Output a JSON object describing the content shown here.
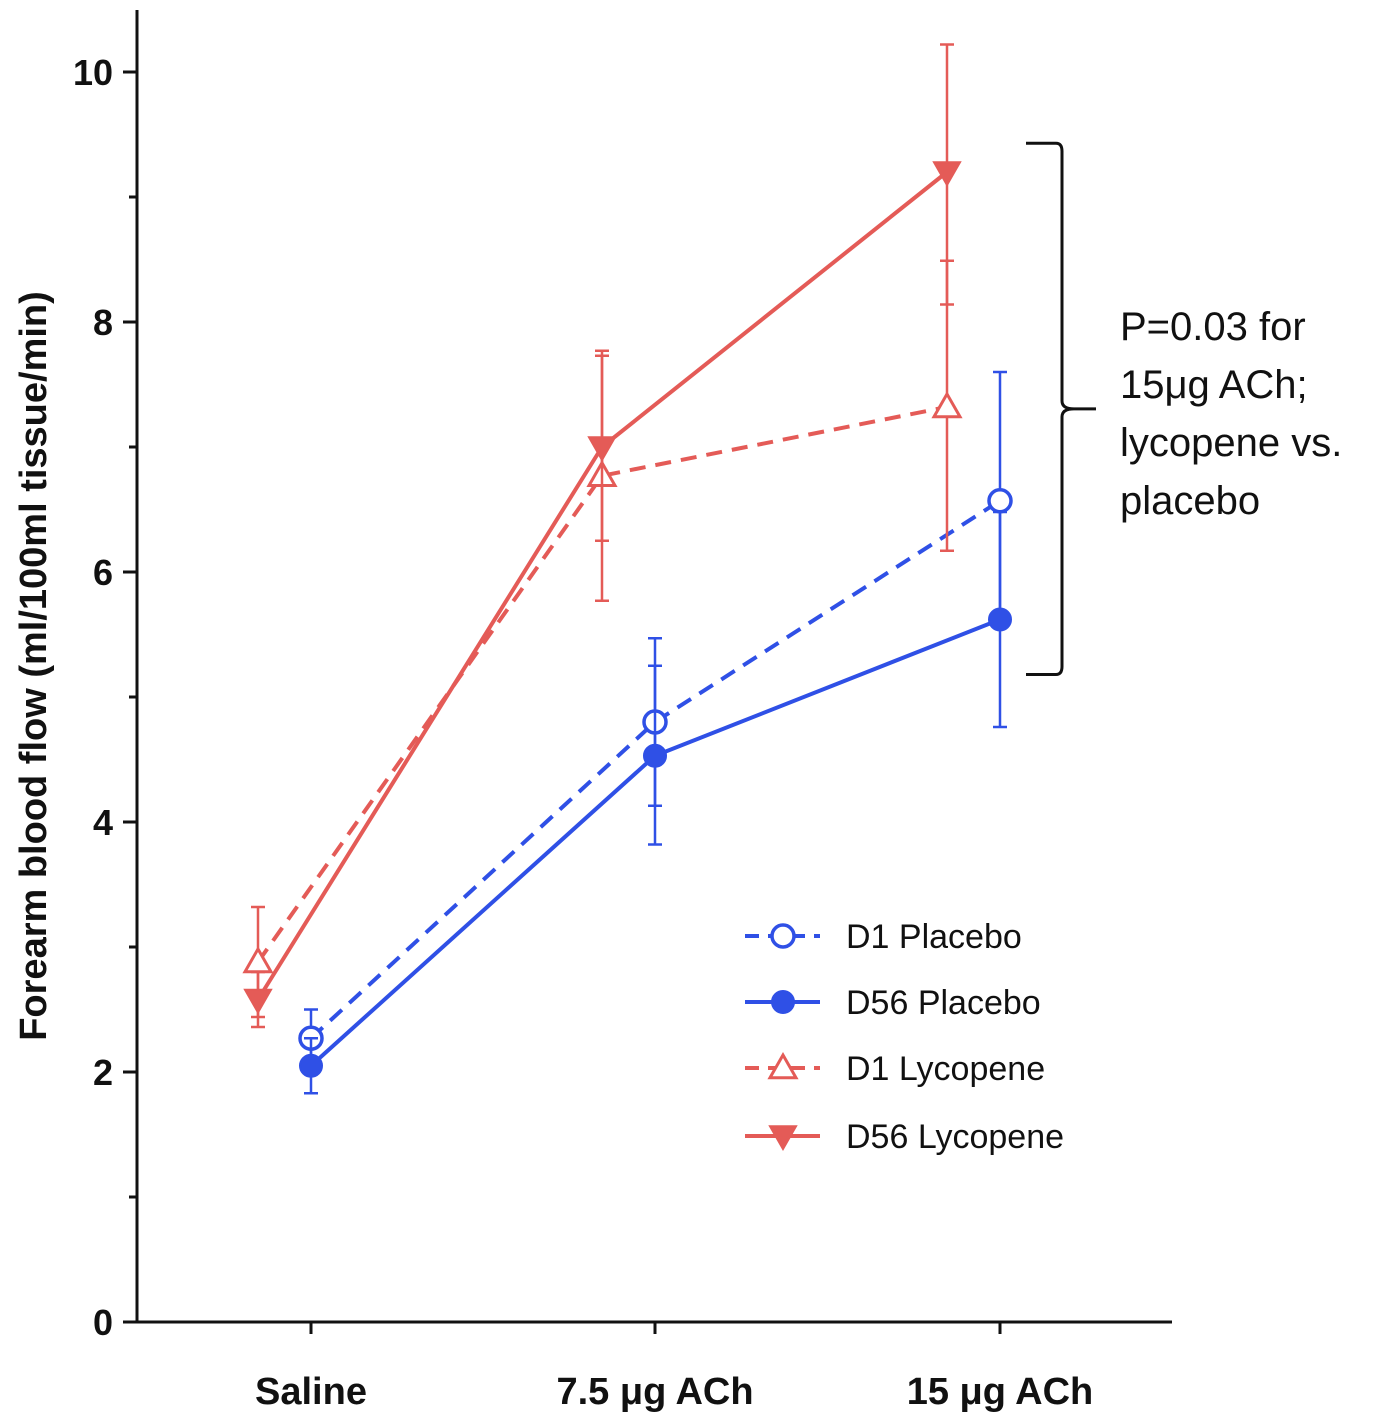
{
  "chart_data": {
    "type": "line",
    "ylabel": "Forearm  blood flow (ml/100ml tissue/min)",
    "xlabel": "",
    "ylim": [
      0,
      10.5
    ],
    "yticks_labeled": [
      "0",
      "2",
      "4",
      "6",
      "8",
      "10"
    ],
    "yticks_all": [
      0,
      1,
      2,
      3,
      4,
      5,
      6,
      7,
      8,
      9,
      10
    ],
    "categories": [
      "Saline",
      "7.5 μg ACh",
      "15 μg ACh"
    ],
    "series": [
      {
        "name": "D1 Placebo",
        "color": "#2f50e6",
        "dashed": true,
        "marker": "open-circle",
        "values": [
          2.27,
          4.8,
          6.57
        ],
        "err_upper": [
          2.5,
          5.47,
          7.6
        ],
        "err_lower": [
          2.05,
          4.13,
          5.57
        ]
      },
      {
        "name": "D56 Placebo",
        "color": "#2f50e6",
        "dashed": false,
        "marker": "filled-circle",
        "values": [
          2.05,
          4.53,
          5.62
        ],
        "err_upper": [
          2.27,
          5.25,
          6.48
        ],
        "err_lower": [
          1.83,
          3.82,
          4.76
        ]
      },
      {
        "name": "D1 Lycopene",
        "color": "#e45b57",
        "dashed": true,
        "marker": "open-triangle-up",
        "values": [
          2.88,
          6.77,
          7.32
        ],
        "err_upper": [
          3.32,
          7.73,
          8.49
        ],
        "err_lower": [
          2.44,
          5.77,
          6.17
        ]
      },
      {
        "name": "D56 Lycopene",
        "color": "#e45b57",
        "dashed": false,
        "marker": "filled-triangle-down",
        "values": [
          2.58,
          7.0,
          9.2
        ],
        "err_upper": [
          2.8,
          7.77,
          10.22
        ],
        "err_lower": [
          2.36,
          6.25,
          8.14
        ]
      }
    ],
    "legend_placement": "bottom-right",
    "annotation": {
      "lines": [
        "P=0.03 for",
        "15μg ACh;",
        "lycopene vs.",
        "placebo"
      ],
      "bracket_range": [
        5.18,
        9.43
      ]
    },
    "grid": false
  }
}
